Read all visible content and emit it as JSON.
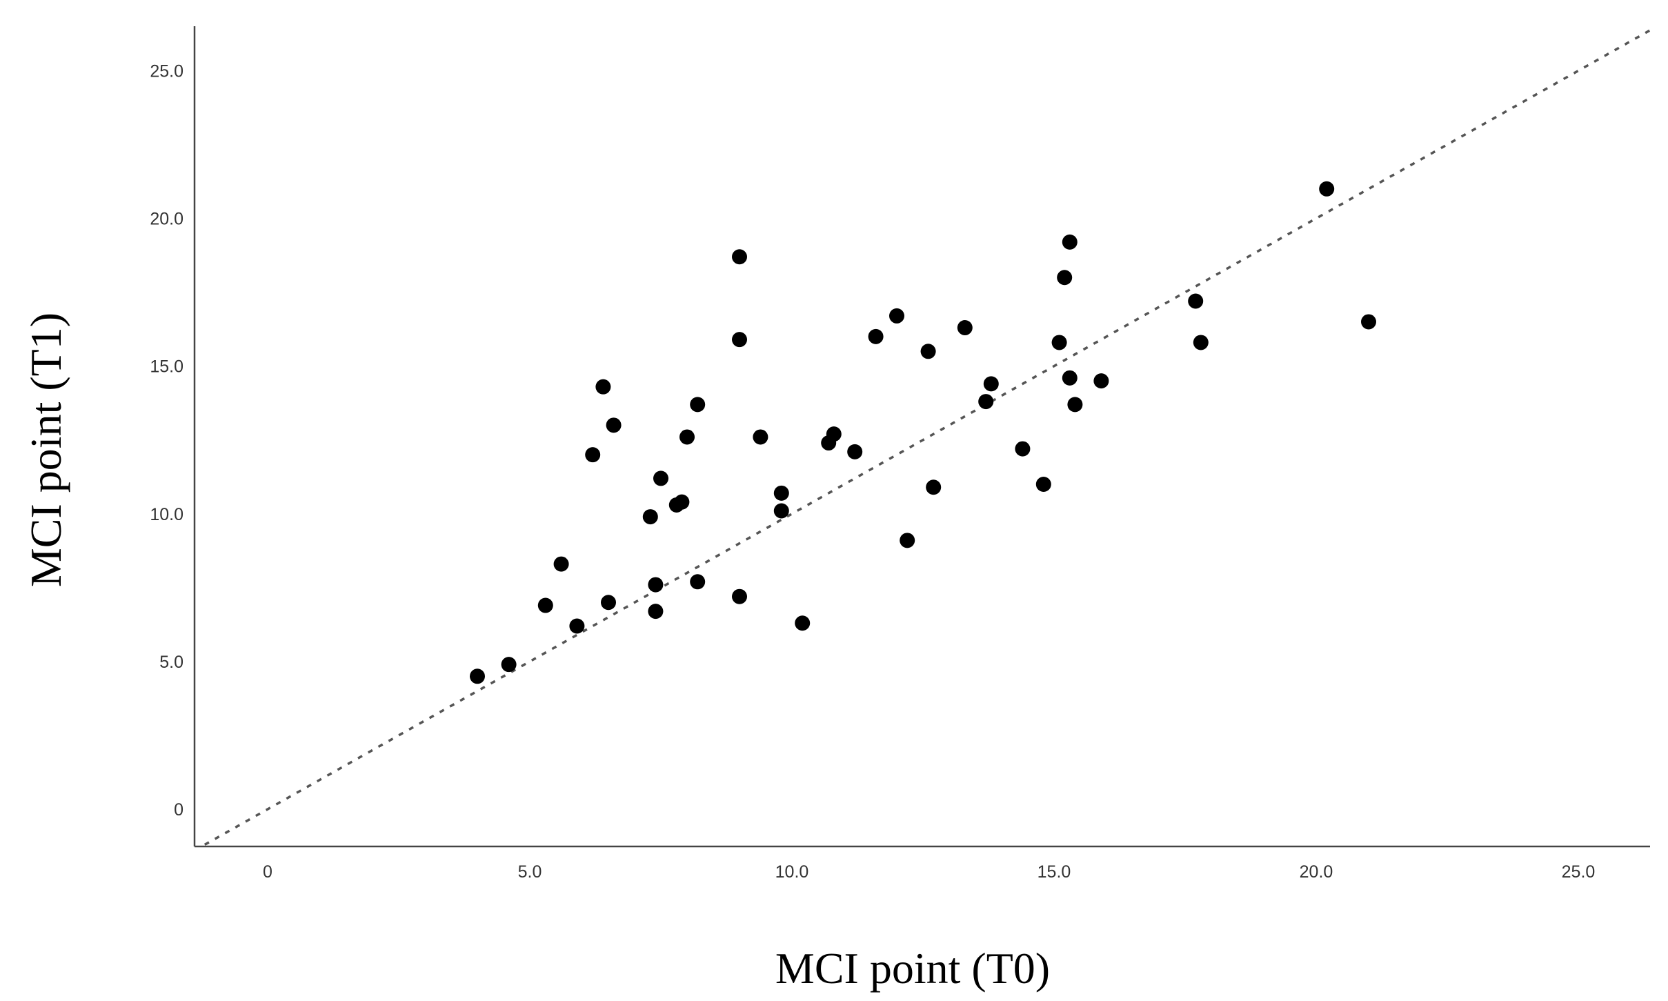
{
  "chart_data": {
    "type": "scatter",
    "xlabel": "MCI point (T0)",
    "ylabel": "MCI point (T1)",
    "xlim": [
      -1.4,
      26.4
    ],
    "ylim": [
      -1.3,
      26.5
    ],
    "x_ticks": [
      0,
      5,
      10,
      15,
      20,
      25
    ],
    "x_tick_labels": [
      "0",
      "5.0",
      "10.0",
      "15.0",
      "20.0",
      "25.0"
    ],
    "y_ticks": [
      0,
      5,
      10,
      15,
      20,
      25
    ],
    "y_tick_labels": [
      "0",
      "5.0",
      "10.0",
      "15.0",
      "20.0",
      "25.0"
    ],
    "grid": false,
    "reference_line": {
      "style": "dotted",
      "from": [
        -1.2,
        -1.2
      ],
      "to": [
        26.4,
        26.4
      ]
    },
    "marker_color": "#000000",
    "points": [
      {
        "x": 4.0,
        "y": 4.5
      },
      {
        "x": 4.6,
        "y": 4.9
      },
      {
        "x": 5.3,
        "y": 6.9
      },
      {
        "x": 5.6,
        "y": 8.3
      },
      {
        "x": 5.9,
        "y": 6.2
      },
      {
        "x": 6.2,
        "y": 12.0
      },
      {
        "x": 6.4,
        "y": 14.3
      },
      {
        "x": 6.5,
        "y": 7.0
      },
      {
        "x": 6.6,
        "y": 13.0
      },
      {
        "x": 7.3,
        "y": 9.9
      },
      {
        "x": 7.4,
        "y": 7.6
      },
      {
        "x": 7.4,
        "y": 6.7
      },
      {
        "x": 7.5,
        "y": 11.2
      },
      {
        "x": 7.8,
        "y": 10.3
      },
      {
        "x": 7.9,
        "y": 10.4
      },
      {
        "x": 8.0,
        "y": 12.6
      },
      {
        "x": 8.2,
        "y": 13.7
      },
      {
        "x": 8.2,
        "y": 7.7
      },
      {
        "x": 9.0,
        "y": 18.7
      },
      {
        "x": 9.0,
        "y": 15.9
      },
      {
        "x": 9.0,
        "y": 7.2
      },
      {
        "x": 9.4,
        "y": 12.6
      },
      {
        "x": 9.8,
        "y": 10.7
      },
      {
        "x": 9.8,
        "y": 10.1
      },
      {
        "x": 10.2,
        "y": 6.3
      },
      {
        "x": 10.7,
        "y": 12.4
      },
      {
        "x": 10.8,
        "y": 12.7
      },
      {
        "x": 11.2,
        "y": 12.1
      },
      {
        "x": 11.6,
        "y": 16.0
      },
      {
        "x": 12.0,
        "y": 16.7
      },
      {
        "x": 12.2,
        "y": 9.1
      },
      {
        "x": 12.6,
        "y": 15.5
      },
      {
        "x": 12.7,
        "y": 10.9
      },
      {
        "x": 13.3,
        "y": 16.3
      },
      {
        "x": 13.7,
        "y": 13.8
      },
      {
        "x": 13.8,
        "y": 14.4
      },
      {
        "x": 14.4,
        "y": 12.2
      },
      {
        "x": 14.8,
        "y": 11.0
      },
      {
        "x": 15.1,
        "y": 15.8
      },
      {
        "x": 15.2,
        "y": 18.0
      },
      {
        "x": 15.3,
        "y": 19.2
      },
      {
        "x": 15.3,
        "y": 14.6
      },
      {
        "x": 15.4,
        "y": 13.7
      },
      {
        "x": 15.9,
        "y": 14.5
      },
      {
        "x": 17.7,
        "y": 17.2
      },
      {
        "x": 17.8,
        "y": 15.8
      },
      {
        "x": 20.2,
        "y": 21.0
      },
      {
        "x": 21.0,
        "y": 16.5
      }
    ]
  }
}
